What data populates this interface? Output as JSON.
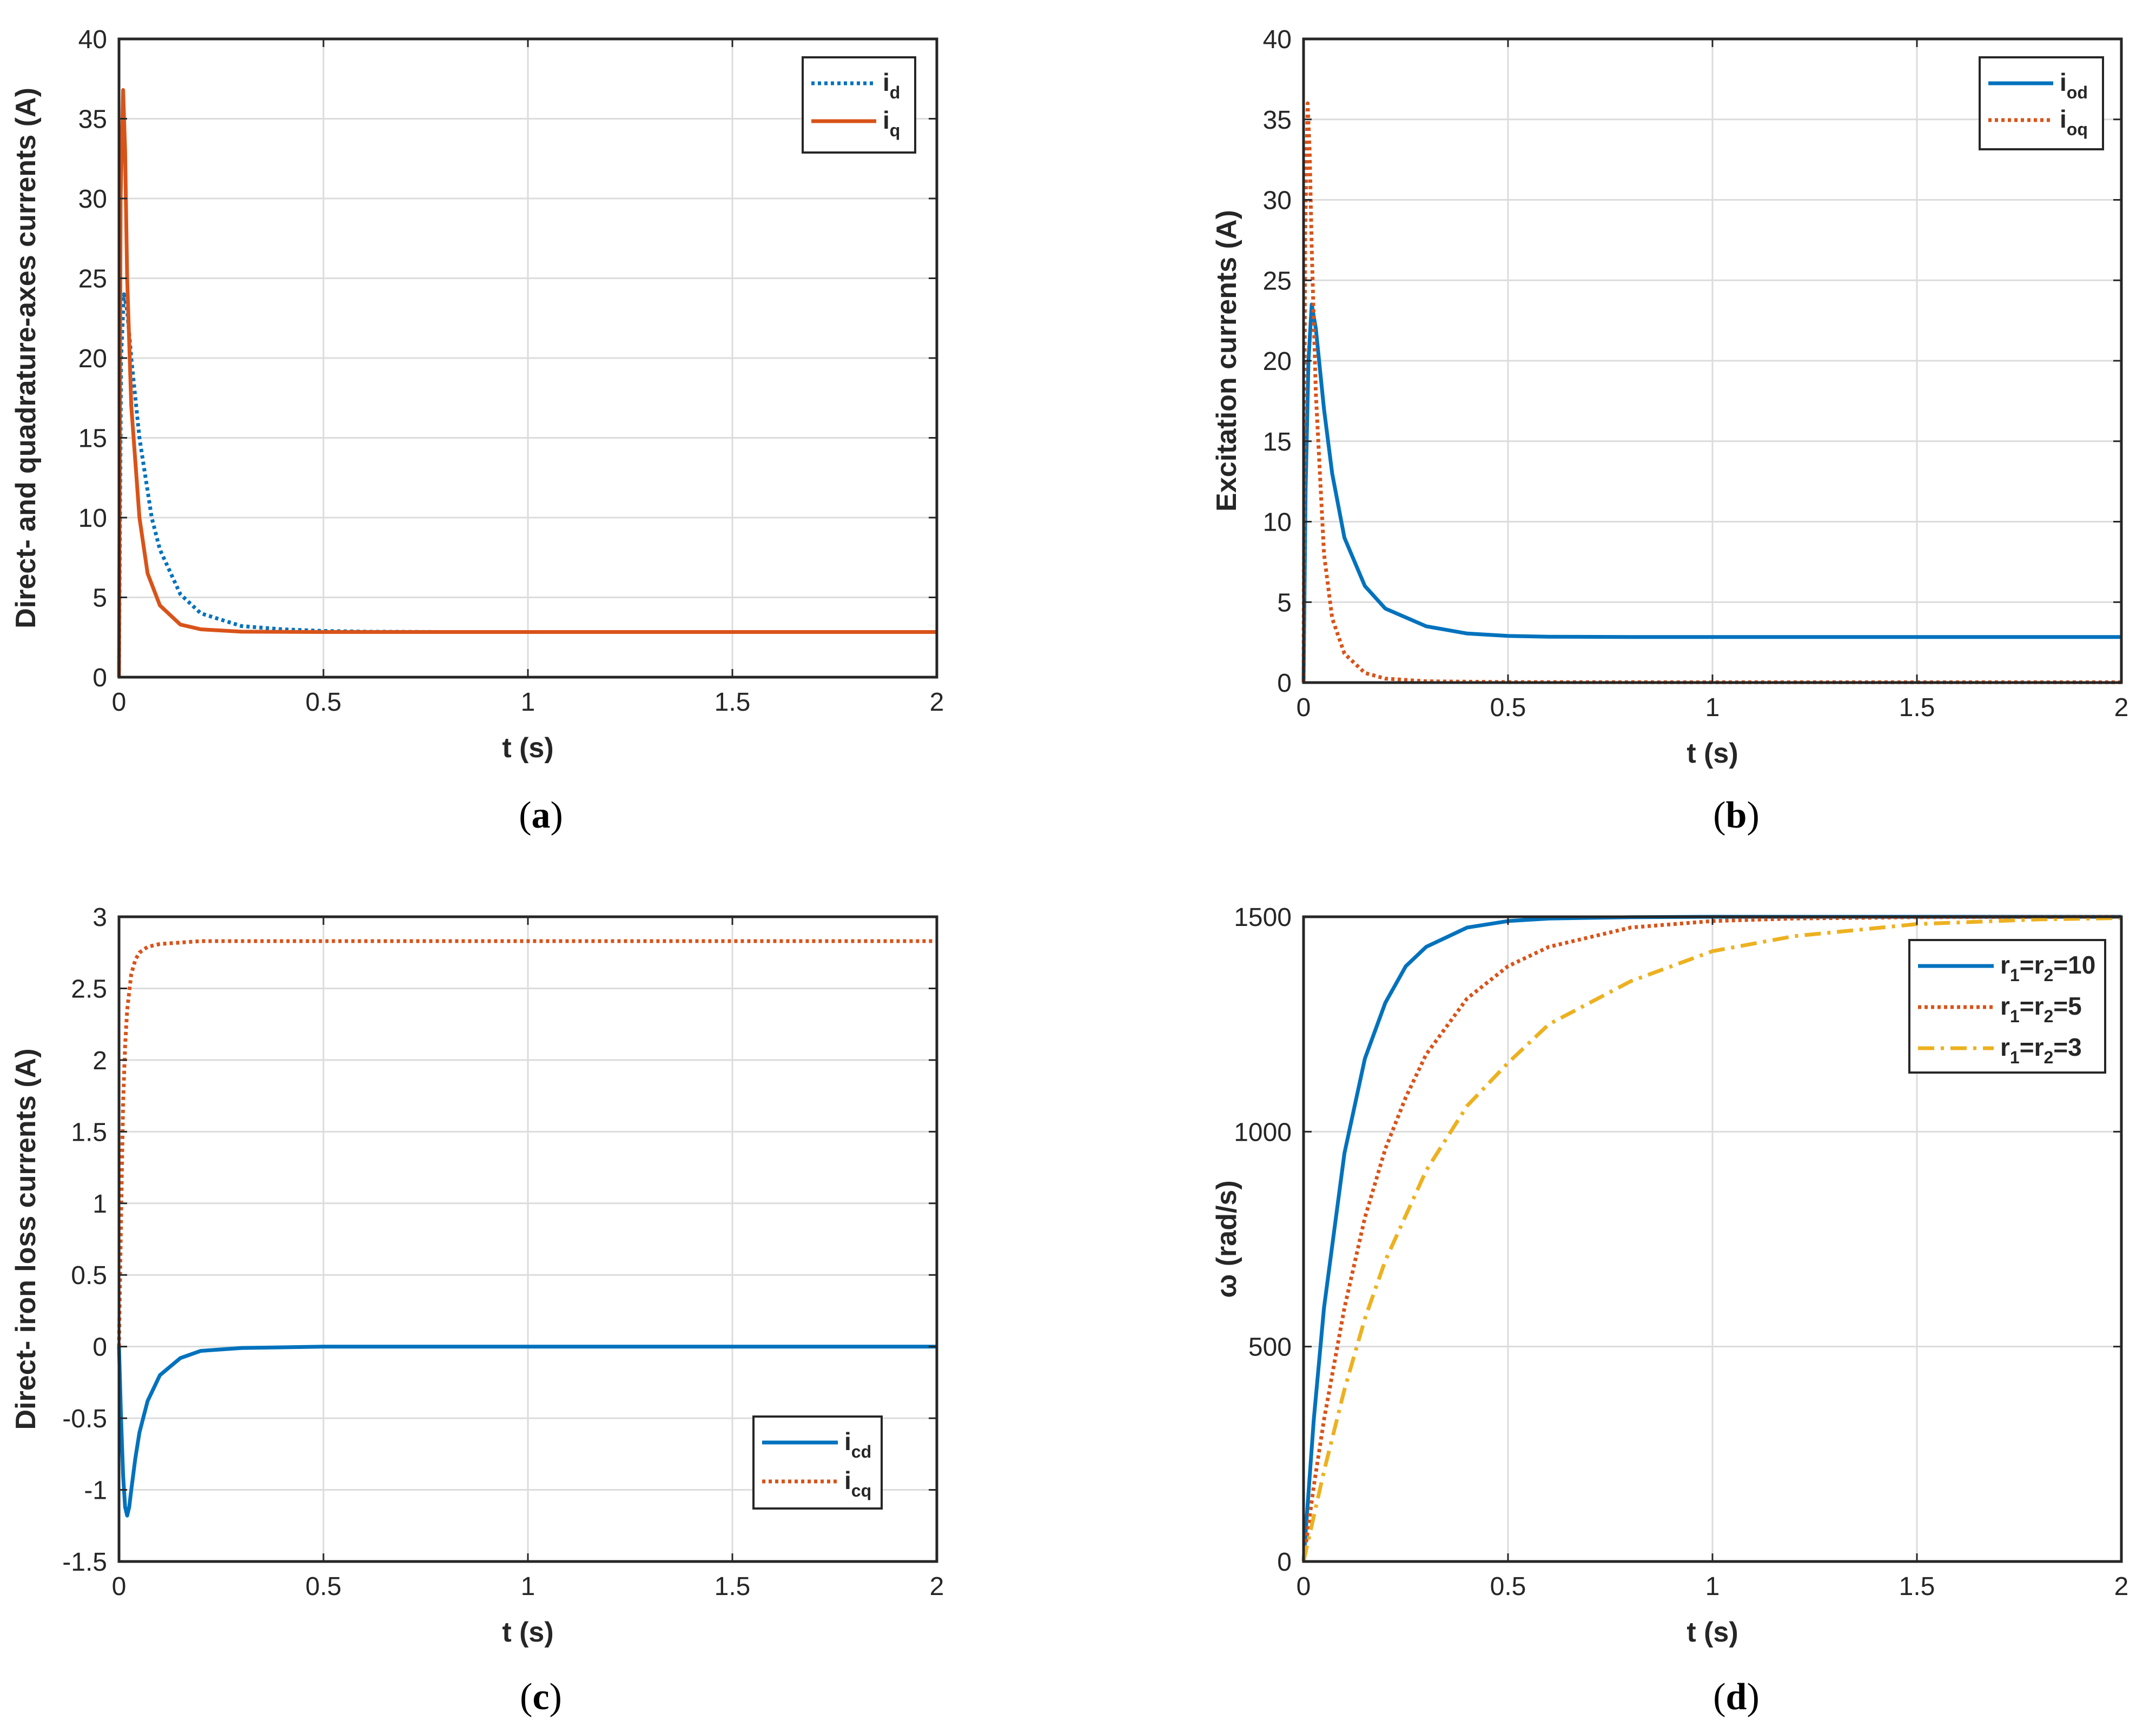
{
  "colors": {
    "blue": "#0072BD",
    "orange": "#D95319",
    "yellow": "#EDB120"
  },
  "chart_data": [
    {
      "type": "line",
      "panel_label": "(a)",
      "panel_letter": "a",
      "xlabel": "t (s)",
      "ylabel": "Direct- and quadrature-axes currents (A)",
      "xlim": [
        0,
        2
      ],
      "ylim": [
        0,
        40
      ],
      "xticks": [
        0,
        0.5,
        1,
        1.5,
        2
      ],
      "xtick_labels": [
        "0",
        "0.5",
        "1",
        "1.5",
        "2"
      ],
      "yticks": [
        0,
        5,
        10,
        15,
        20,
        25,
        30,
        35,
        40
      ],
      "ytick_labels": [
        "0",
        "5",
        "10",
        "15",
        "20",
        "25",
        "30",
        "35",
        "40"
      ],
      "grid": true,
      "legend_position": "top-right",
      "series": [
        {
          "name": "i",
          "subscript": "d",
          "color": "#0072BD",
          "style": "dotted",
          "x": [
            0,
            0.005,
            0.012,
            0.02,
            0.03,
            0.05,
            0.08,
            0.1,
            0.15,
            0.2,
            0.3,
            0.4,
            0.5,
            0.6,
            0.8,
            1.0,
            1.5,
            2.0
          ],
          "y": [
            0,
            20,
            24,
            23,
            20,
            15,
            10,
            8,
            5.2,
            4.0,
            3.2,
            3.0,
            2.9,
            2.85,
            2.83,
            2.83,
            2.83,
            2.83
          ]
        },
        {
          "name": "i",
          "subscript": "q",
          "color": "#D95319",
          "style": "solid",
          "x": [
            0,
            0.004,
            0.01,
            0.015,
            0.02,
            0.03,
            0.05,
            0.07,
            0.1,
            0.15,
            0.2,
            0.3,
            0.5,
            1.0,
            1.5,
            2.0
          ],
          "y": [
            0,
            30,
            36.8,
            33,
            25,
            17,
            10,
            6.5,
            4.5,
            3.3,
            3.0,
            2.85,
            2.83,
            2.83,
            2.83,
            2.83
          ]
        }
      ]
    },
    {
      "type": "line",
      "panel_label": "(b)",
      "panel_letter": "b",
      "xlabel": "t (s)",
      "ylabel": "Excitation currents (A)",
      "xlim": [
        0,
        2
      ],
      "ylim": [
        0,
        40
      ],
      "xticks": [
        0,
        0.5,
        1,
        1.5,
        2
      ],
      "xtick_labels": [
        "0",
        "0.5",
        "1",
        "1.5",
        "2"
      ],
      "yticks": [
        0,
        5,
        10,
        15,
        20,
        25,
        30,
        35,
        40
      ],
      "ytick_labels": [
        "0",
        "5",
        "10",
        "15",
        "20",
        "25",
        "30",
        "35",
        "40"
      ],
      "grid": true,
      "legend_position": "top-right",
      "series": [
        {
          "name": "i",
          "subscript": "od",
          "color": "#0072BD",
          "style": "solid",
          "x": [
            0,
            0.005,
            0.012,
            0.02,
            0.03,
            0.05,
            0.07,
            0.1,
            0.15,
            0.2,
            0.3,
            0.4,
            0.5,
            0.6,
            0.8,
            1.0,
            1.5,
            2.0
          ],
          "y": [
            0,
            12,
            20,
            23.5,
            22,
            17,
            13,
            9,
            6,
            4.6,
            3.5,
            3.05,
            2.9,
            2.85,
            2.83,
            2.83,
            2.83,
            2.83
          ]
        },
        {
          "name": "i",
          "subscript": "oq",
          "color": "#D95319",
          "style": "dotted",
          "x": [
            0,
            0.004,
            0.01,
            0.015,
            0.02,
            0.03,
            0.05,
            0.07,
            0.1,
            0.15,
            0.2,
            0.3,
            0.5,
            1.0,
            1.5,
            2.0
          ],
          "y": [
            0,
            28,
            36,
            33,
            27,
            18,
            8,
            4,
            1.8,
            0.6,
            0.25,
            0.08,
            0.03,
            0.02,
            0.02,
            0.02
          ]
        }
      ]
    },
    {
      "type": "line",
      "panel_label": "(c)",
      "panel_letter": "c",
      "xlabel": "t (s)",
      "ylabel": "Direct- iron loss currents (A)",
      "xlim": [
        0,
        2
      ],
      "ylim": [
        -1.5,
        3
      ],
      "xticks": [
        0,
        0.5,
        1,
        1.5,
        2
      ],
      "xtick_labels": [
        "0",
        "0.5",
        "1",
        "1.5",
        "2"
      ],
      "yticks": [
        -1.5,
        -1,
        -0.5,
        0,
        0.5,
        1,
        1.5,
        2,
        2.5,
        3
      ],
      "ytick_labels": [
        "-1.5",
        "-1",
        "-0.5",
        "0",
        "0.5",
        "1",
        "1.5",
        "2",
        "2.5",
        "3"
      ],
      "grid": true,
      "legend_position": "bottom-right",
      "series": [
        {
          "name": "i",
          "subscript": "cd",
          "color": "#0072BD",
          "style": "solid",
          "x": [
            0,
            0.005,
            0.01,
            0.015,
            0.02,
            0.025,
            0.03,
            0.04,
            0.05,
            0.07,
            0.1,
            0.15,
            0.2,
            0.3,
            0.5,
            1.0,
            1.5,
            2.0
          ],
          "y": [
            0,
            -0.5,
            -0.9,
            -1.12,
            -1.18,
            -1.12,
            -1.0,
            -0.78,
            -0.6,
            -0.38,
            -0.2,
            -0.08,
            -0.03,
            -0.01,
            0,
            0,
            0,
            0
          ]
        },
        {
          "name": "i",
          "subscript": "cq",
          "color": "#D95319",
          "style": "dotted",
          "x": [
            0,
            0.005,
            0.01,
            0.015,
            0.02,
            0.03,
            0.04,
            0.05,
            0.07,
            0.1,
            0.15,
            0.2,
            0.3,
            0.5,
            1.0,
            1.5,
            2.0
          ],
          "y": [
            0,
            0.9,
            1.7,
            2.1,
            2.35,
            2.6,
            2.7,
            2.75,
            2.79,
            2.81,
            2.82,
            2.83,
            2.83,
            2.83,
            2.83,
            2.83,
            2.83
          ]
        }
      ]
    },
    {
      "type": "line",
      "panel_label": "(d)",
      "panel_letter": "d",
      "xlabel": "t (s)",
      "ylabel": "ω (rad/s)",
      "xlim": [
        0,
        2
      ],
      "ylim": [
        0,
        1500
      ],
      "xticks": [
        0,
        0.5,
        1,
        1.5,
        2
      ],
      "xtick_labels": [
        "0",
        "0.5",
        "1",
        "1.5",
        "2"
      ],
      "yticks": [
        0,
        500,
        1000,
        1500
      ],
      "ytick_labels": [
        "0",
        "500",
        "1000",
        "1500"
      ],
      "grid": true,
      "legend_position": "top-right",
      "series": [
        {
          "name": "r1=r2=10",
          "label_parts": [
            "r",
            "1",
            "=r",
            "2",
            "=10"
          ],
          "color": "#0072BD",
          "style": "solid",
          "x": [
            0,
            0.025,
            0.05,
            0.1,
            0.15,
            0.2,
            0.25,
            0.3,
            0.4,
            0.5,
            0.6,
            0.8,
            1.0,
            1.5,
            2.0
          ],
          "y": [
            0,
            330,
            590,
            950,
            1170,
            1300,
            1385,
            1430,
            1475,
            1490,
            1496,
            1499,
            1500,
            1500,
            1500
          ]
        },
        {
          "name": "r1=r2=5",
          "label_parts": [
            "r",
            "1",
            "=r",
            "2",
            "=5"
          ],
          "color": "#D95319",
          "style": "dotted",
          "x": [
            0,
            0.025,
            0.05,
            0.1,
            0.15,
            0.2,
            0.25,
            0.3,
            0.4,
            0.5,
            0.6,
            0.8,
            1.0,
            1.2,
            1.5,
            2.0
          ],
          "y": [
            0,
            175,
            330,
            590,
            800,
            960,
            1080,
            1180,
            1310,
            1385,
            1430,
            1475,
            1490,
            1496,
            1499,
            1500
          ]
        },
        {
          "name": "r1=r2=3",
          "label_parts": [
            "r",
            "1",
            "=r",
            "2",
            "=3"
          ],
          "color": "#EDB120",
          "style": "dashdot",
          "x": [
            0,
            0.05,
            0.1,
            0.15,
            0.2,
            0.3,
            0.4,
            0.5,
            0.6,
            0.8,
            1.0,
            1.2,
            1.5,
            1.8,
            2.0
          ],
          "y": [
            0,
            210,
            400,
            565,
            700,
            910,
            1060,
            1160,
            1250,
            1350,
            1420,
            1455,
            1483,
            1494,
            1497
          ]
        }
      ]
    }
  ]
}
